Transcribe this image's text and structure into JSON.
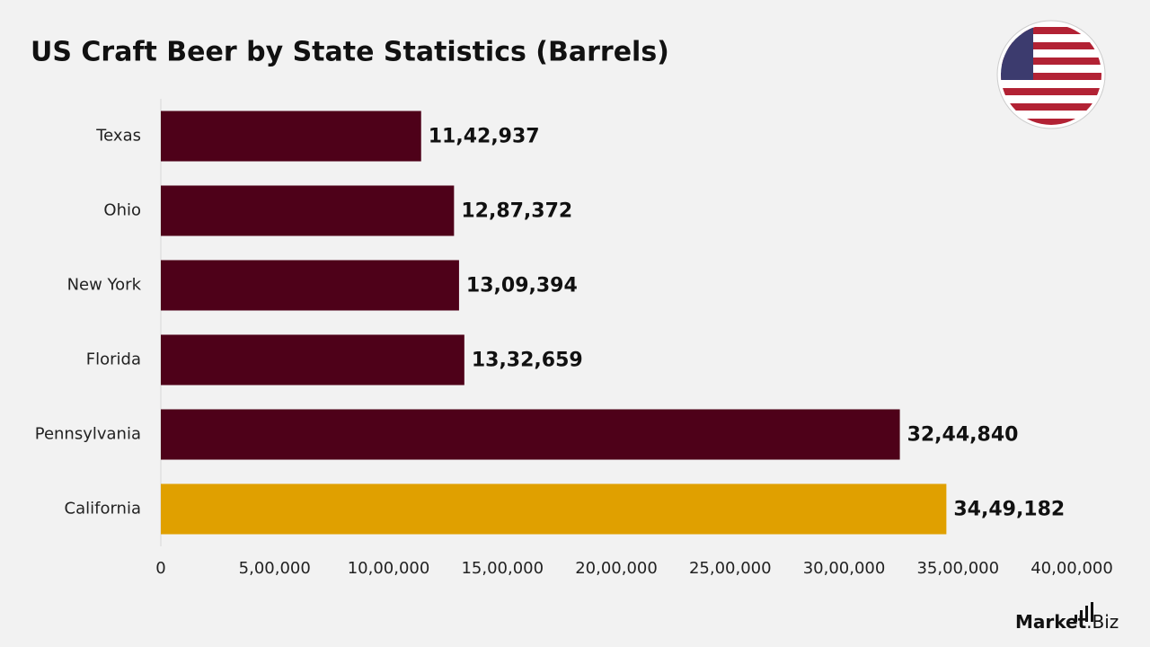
{
  "chart_data": {
    "type": "bar",
    "orientation": "horizontal",
    "title": "US Craft Beer by State Statistics (Barrels)",
    "categories": [
      "Texas",
      "Ohio",
      "New York",
      "Florida",
      "Pennsylvania",
      "California"
    ],
    "values": [
      1142937,
      1287372,
      1309394,
      1332659,
      3244840,
      3449182
    ],
    "value_labels": [
      "11,42,937",
      "12,87,372",
      "13,09,394",
      "13,32,659",
      "32,44,840",
      "34,49,182"
    ],
    "colors": [
      "#4e0119",
      "#4e0119",
      "#4e0119",
      "#4e0119",
      "#4e0119",
      "#e0a000"
    ],
    "xlim": [
      0,
      4000000
    ],
    "xticks": [
      0,
      {
        "value": 500000,
        "label": "5,00,000"
      },
      {
        "value": 1000000,
        "label": "10,00,000"
      },
      {
        "value": 1500000,
        "label": "15,00,000"
      },
      {
        "value": 2000000,
        "label": "20,00,000"
      },
      {
        "value": 2500000,
        "label": "25,00,000"
      },
      {
        "value": 3000000,
        "label": "30,00,000"
      },
      {
        "value": 3500000,
        "label": "35,00,000"
      },
      {
        "value": 4000000,
        "label": "40,00,000"
      }
    ],
    "grid": false
  },
  "brand": {
    "name": "Market",
    "suffix": ".Biz"
  }
}
